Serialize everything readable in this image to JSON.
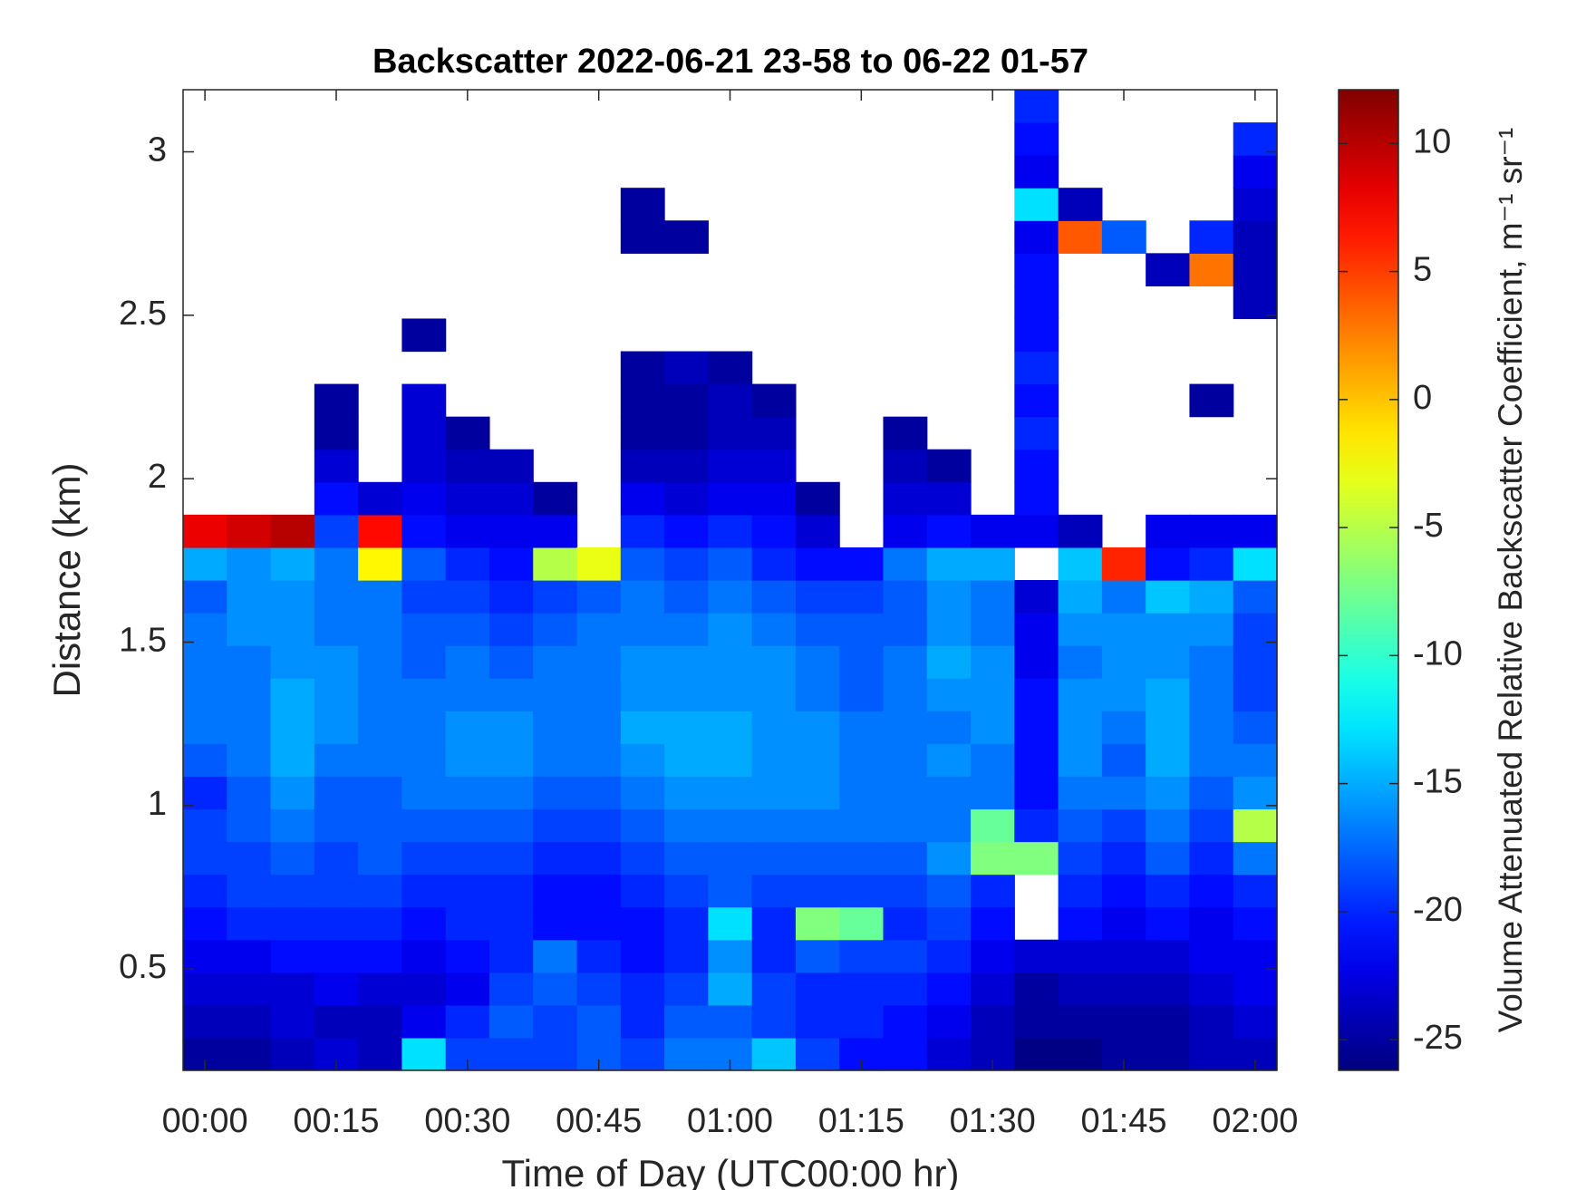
{
  "chart_data": {
    "type": "heatmap",
    "title": "Backscatter 2022-06-21 23-58 to 06-22 01-57",
    "x_label": "Time of Day (UTC00:00 hr)",
    "y_label": "Distance (km)",
    "colorbar_label": "Volume Attenuated Relative Backscatter Coefficient, m⁻¹ sr⁻¹",
    "colormap": "jet",
    "xlim": [
      -2.5,
      122.5
    ],
    "xticks": [
      {
        "value": 0,
        "label": "00:00"
      },
      {
        "value": 15,
        "label": "00:15"
      },
      {
        "value": 30,
        "label": "00:30"
      },
      {
        "value": 45,
        "label": "00:45"
      },
      {
        "value": 60,
        "label": "01:00"
      },
      {
        "value": 75,
        "label": "01:15"
      },
      {
        "value": 90,
        "label": "01:30"
      },
      {
        "value": 105,
        "label": "01:45"
      },
      {
        "value": 120,
        "label": "02:00"
      }
    ],
    "ylim": [
      0.19,
      3.19
    ],
    "yticks": [
      0.5,
      1,
      1.5,
      2,
      2.5,
      3
    ],
    "clim": [
      -26.2,
      12.1
    ],
    "cticks": [
      10,
      5,
      0,
      -5,
      -10,
      -15,
      -20,
      -25
    ],
    "xbins": [
      -2.5,
      2.5,
      7.5,
      12.5,
      17.5,
      22.5,
      27.5,
      32.5,
      37.5,
      42.5,
      47.5,
      52.5,
      57.5,
      62.5,
      67.5,
      72.5,
      77.5,
      82.5,
      87.5,
      92.5,
      97.5,
      102.5,
      107.5,
      112.5,
      117.5,
      122.5
    ],
    "ybins": [
      0.19,
      0.29,
      0.39,
      0.49,
      0.59,
      0.69,
      0.79,
      0.89,
      0.99,
      1.09,
      1.19,
      1.29,
      1.39,
      1.49,
      1.59,
      1.69,
      1.79,
      1.89,
      1.99,
      2.09,
      2.19,
      2.29,
      2.39,
      2.49,
      2.59,
      2.69,
      2.79,
      2.89,
      2.99,
      3.09,
      3.19
    ],
    "z": [
      [
        -25,
        -24,
        -23,
        -22,
        -21,
        -20,
        -19,
        -19,
        -20,
        -18,
        -17,
        -17,
        -17,
        -17,
        -18,
        -15,
        8,
        null,
        null,
        null,
        null,
        null,
        null,
        null,
        null,
        null,
        null,
        null,
        null,
        null
      ],
      [
        -25,
        -24,
        -23,
        -22,
        -20,
        -19,
        -19,
        -18,
        -18,
        -17,
        -17,
        -17,
        -17,
        -16,
        -16,
        -16,
        9,
        null,
        null,
        null,
        null,
        null,
        null,
        null,
        null,
        null,
        null,
        null,
        null,
        null
      ],
      [
        -24,
        -23,
        -23,
        -21,
        -20,
        -19,
        -18,
        -17,
        -16,
        -15,
        -15,
        -15,
        -16,
        -16,
        -16,
        -15,
        10,
        null,
        null,
        null,
        null,
        null,
        null,
        null,
        null,
        null,
        null,
        null,
        null,
        null
      ],
      [
        -23,
        -24,
        -22,
        -21,
        -20,
        -19,
        -19,
        -18,
        -18,
        -17,
        -16,
        -16,
        -16,
        -17,
        -17,
        -17,
        -19,
        -21,
        -23,
        -25,
        -25,
        null,
        null,
        null,
        null,
        null,
        null,
        null,
        null,
        null
      ],
      [
        -24,
        -24,
        -23,
        -21,
        -20,
        -19,
        -18,
        -18,
        -18,
        -17,
        -17,
        -17,
        -17,
        -17,
        -17,
        -2,
        7,
        -23,
        null,
        null,
        null,
        null,
        null,
        null,
        null,
        null,
        null,
        null,
        null,
        null
      ],
      [
        -13,
        -22,
        -23,
        -22,
        -21,
        -20,
        -19,
        -18,
        -17,
        -17,
        -17,
        -17,
        -18,
        -18,
        -19,
        -18,
        -21,
        -22,
        -23,
        -23,
        -23,
        null,
        -25,
        null,
        null,
        null,
        null,
        null,
        null,
        null
      ],
      [
        -19,
        -20,
        -22,
        -21,
        -20,
        -20,
        -19,
        -18,
        -17,
        -16,
        -16,
        -17,
        -17,
        -18,
        -19,
        -20,
        -22,
        -23,
        -24,
        -25,
        null,
        null,
        null,
        null,
        null,
        null,
        null,
        null,
        null,
        null
      ],
      [
        -19,
        -18,
        -19,
        -20,
        -20,
        -20,
        -19,
        -18,
        -17,
        -16,
        -16,
        -17,
        -18,
        -19,
        -20,
        -21,
        -22,
        -23,
        -24,
        null,
        null,
        null,
        null,
        null,
        null,
        null,
        null,
        null,
        null,
        null
      ],
      [
        -19,
        -19,
        -18,
        -17,
        -21,
        -21,
        -20,
        -19,
        -18,
        -17,
        -17,
        -17,
        -17,
        -18,
        -19,
        -5,
        -22,
        -25,
        null,
        null,
        null,
        null,
        null,
        null,
        null,
        null,
        null,
        null,
        null,
        null
      ],
      [
        -18,
        -18,
        -19,
        -20,
        -21,
        -21,
        -20,
        -19,
        -18,
        -17,
        -17,
        -17,
        -17,
        -17,
        -18,
        -3,
        null,
        null,
        null,
        null,
        null,
        null,
        null,
        null,
        null,
        null,
        null,
        null,
        null,
        null
      ],
      [
        -19,
        -20,
        -20,
        -21,
        -21,
        -20,
        -19,
        -18,
        -17,
        -16,
        -15,
        -16,
        -16,
        -17,
        -17,
        -18,
        -20,
        -22,
        -24,
        -25,
        -25,
        -25,
        null,
        null,
        null,
        -25,
        -25,
        null,
        null,
        null
      ],
      [
        -17,
        -18,
        -19,
        -20,
        -20,
        -19,
        -18,
        -17,
        -16,
        -15,
        -15,
        -16,
        -16,
        -17,
        -18,
        -19,
        -21,
        -23,
        -24,
        -25,
        -25,
        -24,
        null,
        null,
        null,
        -25,
        null,
        null,
        null,
        null
      ],
      [
        -17,
        -18,
        -15,
        -16,
        -13,
        -18,
        -18,
        -17,
        -16,
        -15,
        -15,
        -16,
        -16,
        -16,
        -17,
        -18,
        -20,
        -22,
        -23,
        -24,
        -24,
        -25,
        null,
        null,
        null,
        null,
        null,
        null,
        null,
        null
      ],
      [
        -14,
        -19,
        -19,
        -20,
        -20,
        -19,
        -18,
        -17,
        -16,
        -16,
        -16,
        -16,
        -16,
        -17,
        -18,
        -20,
        -21,
        -22,
        -23,
        -24,
        -25,
        null,
        null,
        null,
        null,
        null,
        null,
        null,
        null,
        null
      ],
      [
        -19,
        -20,
        -20,
        -18,
        -7,
        -19,
        -18,
        -17,
        -16,
        -16,
        -16,
        -17,
        -17,
        -18,
        -19,
        -21,
        -23,
        -25,
        null,
        null,
        null,
        null,
        null,
        null,
        null,
        null,
        null,
        null,
        null,
        null
      ],
      [
        -21,
        -20,
        -20,
        -19,
        -8,
        -19,
        -18,
        -17,
        -17,
        -17,
        -17,
        -18,
        -18,
        -18,
        -19,
        -21,
        null,
        null,
        null,
        null,
        null,
        null,
        null,
        null,
        null,
        null,
        null,
        null,
        null,
        null
      ],
      [
        -21,
        -21,
        -20,
        -19,
        -20,
        -19,
        -18,
        -17,
        -17,
        -17,
        -17,
        -17,
        -17,
        -18,
        -18,
        -17,
        -22,
        -23,
        -24,
        -25,
        null,
        null,
        null,
        null,
        null,
        null,
        null,
        null,
        null,
        null
      ],
      [
        -23,
        -22,
        -21,
        -20,
        -19,
        -18,
        -16,
        -17,
        -17,
        -16,
        -17,
        -16,
        -15,
        -16,
        -16,
        -15,
        -21,
        -23,
        -25,
        null,
        null,
        null,
        null,
        null,
        null,
        null,
        null,
        null,
        null,
        null
      ],
      [
        -24,
        -24,
        -23,
        -22,
        -21,
        -20,
        -7,
        -8,
        -17,
        -17,
        -16,
        -16,
        -16,
        -17,
        -17,
        -15,
        -22,
        null,
        null,
        null,
        null,
        null,
        null,
        null,
        null,
        null,
        null,
        null,
        null,
        null
      ],
      [
        -26,
        -25,
        -25,
        -23,
        null,
        null,
        -7,
        -20,
        -21,
        -21,
        -21,
        -21,
        -22,
        -22,
        -23,
        null,
        -22,
        -21,
        -21,
        -20,
        -21,
        -20,
        -21,
        -21,
        -21,
        -22,
        -13,
        -22,
        -21,
        -20
      ],
      [
        -26,
        -25,
        -24,
        -23,
        -21,
        -20,
        -19,
        -18,
        -17,
        -16,
        -16,
        -16,
        -17,
        -16,
        -15,
        -14,
        -24,
        null,
        null,
        null,
        null,
        null,
        null,
        null,
        null,
        4,
        -24,
        null,
        null,
        null
      ],
      [
        -25,
        -25,
        -24,
        -23,
        -22,
        -21,
        -20,
        -19,
        -17,
        -18,
        -17,
        -16,
        -16,
        -16,
        -17,
        6,
        null,
        null,
        null,
        null,
        null,
        null,
        null,
        null,
        null,
        -18,
        null,
        null,
        null,
        null
      ],
      [
        -25,
        -25,
        -24,
        -23,
        -21,
        -20,
        -18,
        -17,
        -16,
        -15,
        -15,
        -15,
        -16,
        -16,
        -14,
        -21,
        -22,
        null,
        null,
        null,
        null,
        null,
        null,
        null,
        -24,
        null,
        null,
        null,
        null,
        null
      ],
      [
        -24,
        -24,
        -23,
        -22,
        -22,
        -21,
        -20,
        -19,
        -18,
        -17,
        -17,
        -17,
        -17,
        -16,
        -15,
        -20,
        -22,
        null,
        null,
        null,
        -25,
        null,
        null,
        null,
        3,
        -20,
        null,
        null,
        null,
        null
      ],
      [
        -24,
        -23,
        -22,
        -22,
        -21,
        -20,
        -17,
        -5,
        -16,
        -17,
        -18,
        -19,
        -19,
        -19,
        -18,
        -13,
        -22,
        null,
        null,
        null,
        null,
        null,
        null,
        -24,
        -24,
        -24,
        -23,
        -22,
        -20,
        null
      ]
    ]
  }
}
